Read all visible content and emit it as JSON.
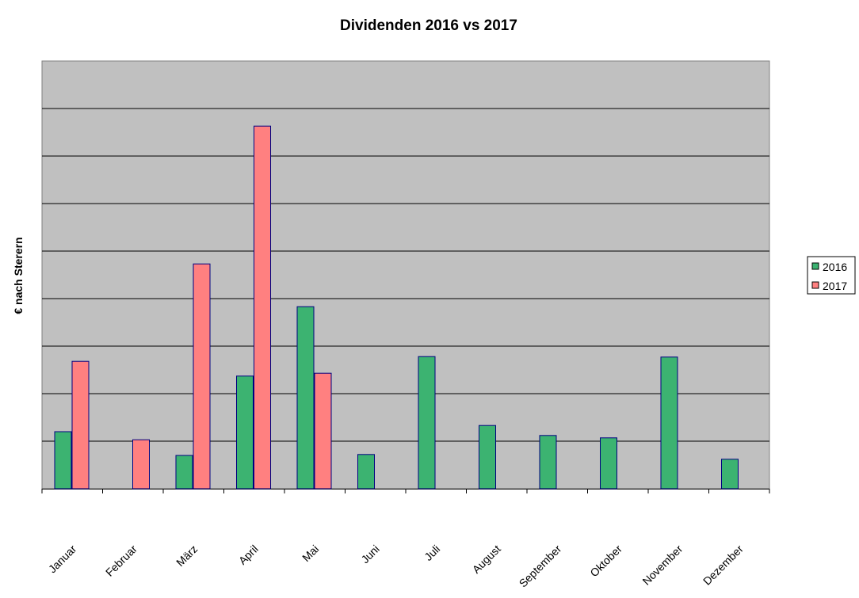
{
  "chart_data": {
    "type": "bar",
    "title": "Dividenden 2016 vs 2017",
    "xlabel": "",
    "ylabel": "€ nach Sterern",
    "categories": [
      "Januar",
      "Februar",
      "März",
      "April",
      "Mai",
      "Juni",
      "Juli",
      "August",
      "September",
      "Oktober",
      "November",
      "Dezember"
    ],
    "series": [
      {
        "name": "2016",
        "color": "#3CB371",
        "values": [
          1.2,
          0,
          0.7,
          2.37,
          3.83,
          0.72,
          2.78,
          1.33,
          1.12,
          1.07,
          2.77,
          0.62
        ]
      },
      {
        "name": "2017",
        "color": "#FF8080",
        "values": [
          2.68,
          1.03,
          4.73,
          7.63,
          2.43,
          0,
          0,
          0,
          0,
          0,
          0,
          0
        ]
      }
    ],
    "ylim": [
      0,
      9
    ],
    "gridlines": 9,
    "grid": true,
    "legend_position": "right",
    "plot_background": "#C0C0C0"
  }
}
